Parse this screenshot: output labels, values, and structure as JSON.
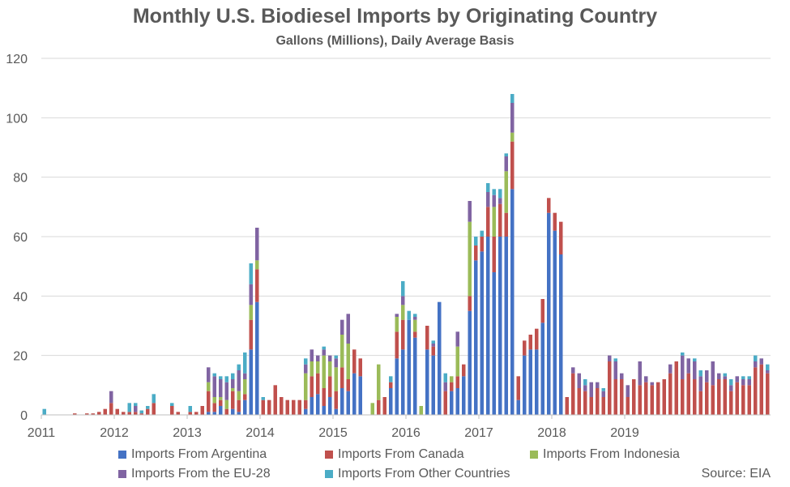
{
  "chart_data": {
    "type": "bar",
    "stacked": true,
    "title": "Monthly U.S. Biodiesel Imports by Originating Country",
    "subtitle": "Gallons (Millions), Daily Average Basis",
    "xlabel": "",
    "ylabel": "",
    "ylim": [
      0,
      120
    ],
    "yticks": [
      0,
      20,
      40,
      60,
      80,
      100,
      120
    ],
    "x_tick_labels": [
      "2011",
      "2012",
      "2013",
      "2014",
      "2015",
      "2016",
      "2017",
      "2018",
      "2019"
    ],
    "grid": true,
    "legend_position": "bottom",
    "source": "Source: EIA",
    "x_start": "2011-01",
    "series": [
      {
        "name": "Imports From Argentina",
        "color": "#4472C4",
        "values": [
          0,
          0,
          0,
          0,
          0,
          0,
          0,
          0,
          0,
          0,
          0,
          0,
          0,
          0,
          0,
          0,
          0,
          0,
          0,
          0,
          0,
          0,
          0,
          0,
          0,
          0,
          0,
          1,
          1,
          3,
          0,
          2,
          1,
          5,
          22,
          38,
          0,
          0,
          0,
          0,
          0,
          0,
          0,
          2,
          6,
          7,
          3,
          6,
          2,
          9,
          8,
          14,
          13,
          0,
          0,
          0,
          0,
          9,
          19,
          22,
          32,
          26,
          0,
          22,
          20,
          38,
          0,
          8,
          9,
          13,
          35,
          52,
          55,
          60,
          48,
          60,
          60,
          76,
          5,
          20,
          22,
          22,
          31,
          68,
          62,
          54,
          0,
          0,
          0,
          0,
          0,
          0,
          0,
          0,
          0,
          0,
          0,
          0,
          0,
          0,
          0,
          0,
          0,
          0,
          0,
          0,
          0,
          0,
          0,
          0,
          0,
          0,
          0,
          0,
          0,
          0,
          0,
          0,
          0,
          0
        ]
      },
      {
        "name": "Imports From Canada",
        "color": "#C0504D",
        "values": [
          0,
          0,
          0,
          0,
          0,
          0.5,
          0,
          0.5,
          0.5,
          1,
          2,
          4,
          2,
          1,
          1,
          1,
          0.5,
          2,
          4,
          0,
          0,
          3,
          1,
          0,
          1,
          1,
          3,
          7,
          3,
          2,
          2,
          6,
          4,
          2,
          10,
          11,
          5,
          5,
          10,
          6,
          5,
          5,
          5,
          3,
          7,
          7,
          6,
          7,
          6,
          7,
          4,
          8,
          6,
          0,
          0,
          5,
          6,
          2,
          9,
          10,
          0,
          2,
          0,
          8,
          3,
          0,
          8,
          3,
          4,
          4,
          5,
          5,
          5,
          10,
          12,
          11,
          8,
          16,
          8,
          5,
          5,
          7,
          8,
          5,
          6,
          11,
          6,
          14,
          9,
          8,
          6,
          9,
          6,
          18,
          12,
          12,
          6,
          12,
          10,
          11,
          10,
          11,
          12,
          14,
          18,
          12,
          14,
          12,
          8,
          11,
          10,
          12,
          12,
          8,
          11,
          10,
          10,
          16,
          17,
          14
        ]
      },
      {
        "name": "Imports From Indonesia",
        "color": "#9BBB59",
        "values": [
          0,
          0,
          0,
          0,
          0,
          0,
          0,
          0,
          0,
          0,
          0,
          0,
          0,
          0,
          0,
          0,
          0,
          0,
          0,
          0,
          0,
          0,
          0,
          0,
          0,
          0,
          0,
          3,
          2,
          1,
          3,
          1,
          3,
          5,
          5,
          3,
          0,
          0,
          0,
          0,
          0,
          0,
          0,
          9,
          5,
          4,
          11,
          5,
          8,
          11,
          12,
          0,
          0,
          0,
          4,
          12,
          0,
          0,
          5,
          5,
          0,
          4,
          3,
          0,
          0,
          0,
          0,
          2,
          10,
          0,
          25,
          0,
          0,
          0,
          10,
          0,
          14,
          3,
          0,
          0,
          0,
          0,
          0,
          0,
          0,
          0,
          0,
          0,
          0,
          0,
          0,
          0,
          0,
          0,
          0,
          0,
          0,
          0,
          0,
          0,
          0,
          0,
          0,
          0,
          0,
          0,
          0,
          0,
          0,
          0,
          0,
          0,
          0,
          0,
          0,
          0,
          0,
          0,
          0,
          0
        ]
      },
      {
        "name": "Imports From the EU-28",
        "color": "#8064A2",
        "values": [
          0,
          0,
          0,
          0,
          0,
          0,
          0,
          0,
          0,
          0,
          0,
          4,
          0,
          0,
          0,
          2,
          0,
          0,
          0,
          0,
          0,
          0,
          0,
          0,
          0,
          0,
          0,
          5,
          7,
          6,
          6,
          3,
          7,
          2,
          7,
          11,
          0,
          0,
          0,
          0,
          0,
          0,
          0,
          3,
          4,
          2,
          2,
          2,
          3,
          5,
          10,
          0,
          0,
          0,
          0,
          0,
          0,
          0,
          1,
          3,
          0,
          1,
          0,
          0,
          1,
          0,
          3,
          0,
          5,
          0,
          7,
          0,
          0,
          5,
          4,
          2,
          5,
          10,
          0,
          0,
          0,
          0,
          0,
          0,
          0,
          0,
          0,
          2,
          5,
          2,
          5,
          2,
          2,
          2,
          6,
          2,
          4,
          0,
          8,
          2,
          1,
          0,
          0,
          3,
          0,
          8,
          5,
          6,
          5,
          4,
          8,
          2,
          1,
          2,
          2,
          2,
          2,
          2,
          2,
          1
        ]
      },
      {
        "name": "Imports From Other Countries",
        "color": "#4BACC6",
        "values": [
          2,
          0,
          0,
          0,
          0,
          0,
          0,
          0,
          0,
          0,
          0,
          0,
          0,
          0,
          3,
          1,
          1,
          1,
          3,
          0,
          0,
          1,
          0,
          0,
          2,
          0,
          0,
          0,
          1,
          1,
          2,
          2,
          2,
          7,
          7,
          0,
          1,
          0,
          0,
          0,
          0,
          0,
          0,
          2,
          0,
          0,
          1,
          0,
          1,
          0,
          0,
          0,
          0,
          0,
          0,
          0,
          0,
          2,
          0,
          5,
          3,
          1,
          0,
          0,
          1,
          0,
          3,
          0,
          0,
          0,
          0,
          3,
          2,
          3,
          2,
          3,
          1,
          3,
          0,
          0,
          0,
          0,
          0,
          0,
          0,
          0,
          0,
          0,
          0,
          2,
          0,
          0,
          1,
          0,
          1,
          0,
          0,
          0,
          0,
          0,
          0,
          0,
          0,
          0,
          0,
          1,
          0,
          1,
          2,
          0,
          0,
          0,
          1,
          2,
          0,
          1,
          1,
          2,
          0,
          2
        ]
      }
    ]
  }
}
